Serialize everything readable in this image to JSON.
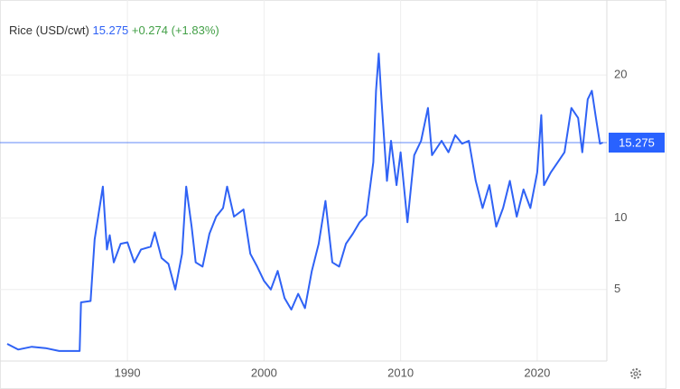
{
  "chart_data": {
    "type": "line",
    "series": [
      {
        "name": "Rice (USD/cwt)",
        "color": "#2f62f5",
        "values": [
          1.2,
          0.8,
          1.0,
          0.9,
          0.7,
          0.7,
          4.1,
          4.2,
          8.5,
          12.2,
          7.8,
          8.8,
          6.9,
          8.2,
          8.3,
          6.9,
          7.8,
          8.0,
          9.0,
          7.2,
          6.8,
          5.0,
          7.5,
          12.2,
          9.4,
          6.9,
          6.6,
          8.9,
          10.1,
          10.7,
          12.2,
          10.1,
          10.6,
          7.5,
          6.6,
          5.6,
          5.0,
          6.3,
          4.4,
          3.6,
          4.7,
          3.7,
          6.3,
          8.2,
          11.2,
          6.9,
          6.6,
          8.2,
          8.9,
          9.7,
          10.2,
          13.9,
          18.9,
          21.5,
          18.3,
          12.6,
          15.4,
          12.3,
          14.6,
          9.7,
          14.4,
          15.4,
          17.7,
          14.4,
          15.4,
          14.6,
          15.8,
          15.2,
          15.4,
          12.6,
          10.7,
          12.3,
          9.4,
          10.7,
          12.6,
          10.1,
          12.0,
          10.7,
          13.2,
          17.2,
          12.3,
          13.2,
          13.9,
          14.6,
          17.7,
          17.0,
          14.6,
          18.3,
          18.9,
          17.0,
          15.2,
          15.275
        ]
      }
    ],
    "x": [
      1981.2,
      1982,
      1983,
      1984,
      1985,
      1986.5,
      1986.6,
      1987.3,
      1987.6,
      1988.2,
      1988.5,
      1988.7,
      1989,
      1989.5,
      1990,
      1990.5,
      1991,
      1991.7,
      1992,
      1992.5,
      1993,
      1993.5,
      1994,
      1994.3,
      1994.7,
      1995,
      1995.5,
      1996,
      1996.5,
      1997,
      1997.3,
      1997.8,
      1998.5,
      1999,
      1999.5,
      2000,
      2000.5,
      2001,
      2001.5,
      2002,
      2002.5,
      2003,
      2003.5,
      2004,
      2004.5,
      2005,
      2005.5,
      2006,
      2006.5,
      2007,
      2007.5,
      2008,
      2008.2,
      2008.4,
      2008.6,
      2009,
      2009.3,
      2009.7,
      2010,
      2010.5,
      2011,
      2011.5,
      2012,
      2012.3,
      2013,
      2013.5,
      2014,
      2014.5,
      2015,
      2015.5,
      2016,
      2016.5,
      2017,
      2017.5,
      2018,
      2018.5,
      2019,
      2019.5,
      2020,
      2020.3,
      2020.5,
      2021,
      2021.5,
      2022,
      2022.5,
      2023,
      2023.3,
      2023.7,
      2024,
      2024.3,
      2024.6,
      2024.8
    ],
    "xlim": [
      1981,
      2025.1
    ],
    "xticks": [
      1990,
      2000,
      2010,
      2020
    ],
    "ylim": [
      0,
      25.25
    ],
    "yticks": [
      5,
      10,
      20
    ],
    "last_value": 15.275,
    "change_label": "+0.274",
    "change_pct_label": "(+1.83%)",
    "change_color": "#43a047",
    "grid": true
  }
}
